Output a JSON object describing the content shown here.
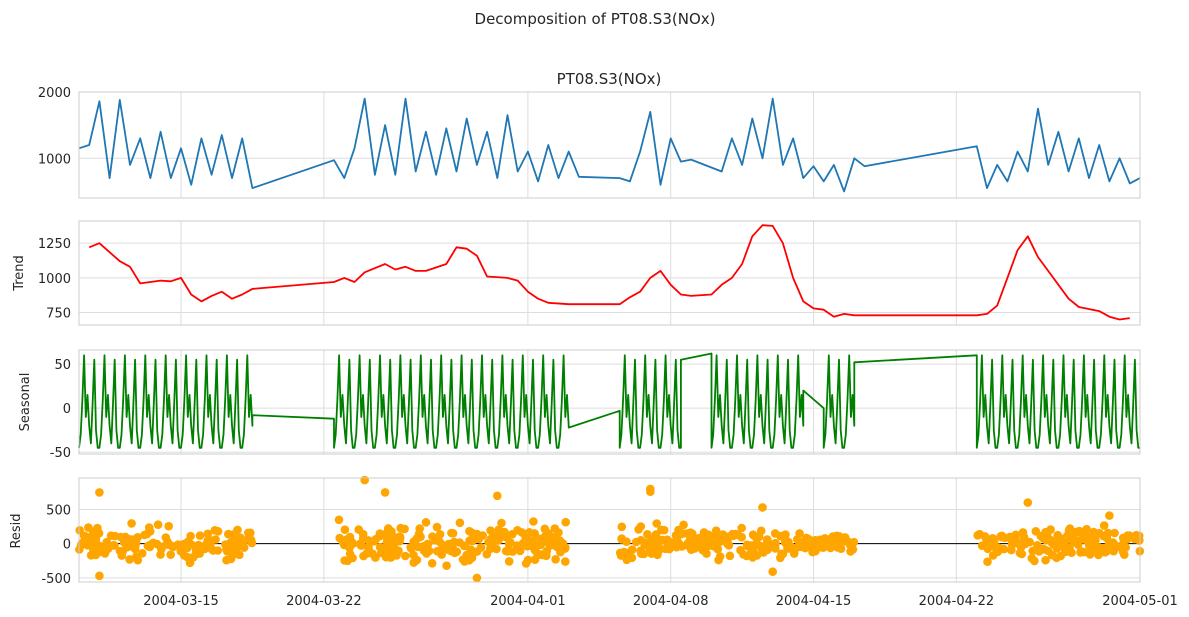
{
  "suptitle": "Decomposition of PT08.S3(NOx)",
  "x_ticks": [
    {
      "date": "2004-03-15",
      "label": "2004-03-15"
    },
    {
      "date": "2004-03-22",
      "label": "2004-03-22"
    },
    {
      "date": "2004-04-01",
      "label": "2004-04-01"
    },
    {
      "date": "2004-04-08",
      "label": "2004-04-08"
    },
    {
      "date": "2004-04-15",
      "label": "2004-04-15"
    },
    {
      "date": "2004-04-22",
      "label": "2004-04-22"
    },
    {
      "date": "2004-05-01",
      "label": "2004-05-01"
    }
  ],
  "chart_data": [
    {
      "id": "observed",
      "type": "line",
      "title": "PT08.S3(NOx)",
      "ylabel": "",
      "color": "#1f77b4",
      "xlim": [
        "2004-03-10",
        "2004-05-01"
      ],
      "ylim": [
        400,
        2000
      ],
      "yticks": [
        1000,
        2000
      ],
      "grid": true,
      "points": [
        [
          "2004-03-10",
          1150
        ],
        [
          "2004-03-10 12:00",
          1200
        ],
        [
          "2004-03-11",
          1860
        ],
        [
          "2004-03-11 12:00",
          700
        ],
        [
          "2004-03-12",
          1880
        ],
        [
          "2004-03-12 12:00",
          900
        ],
        [
          "2004-03-13",
          1300
        ],
        [
          "2004-03-13 12:00",
          700
        ],
        [
          "2004-03-14",
          1400
        ],
        [
          "2004-03-14 12:00",
          700
        ],
        [
          "2004-03-15",
          1150
        ],
        [
          "2004-03-15 12:00",
          600
        ],
        [
          "2004-03-16",
          1300
        ],
        [
          "2004-03-16 12:00",
          750
        ],
        [
          "2004-03-17",
          1350
        ],
        [
          "2004-03-17 12:00",
          700
        ],
        [
          "2004-03-18",
          1300
        ],
        [
          "2004-03-18 12:00",
          550
        ],
        [
          "2004-03-22 12:00",
          970
        ],
        [
          "2004-03-23",
          700
        ],
        [
          "2004-03-23 12:00",
          1150
        ],
        [
          "2004-03-24",
          1900
        ],
        [
          "2004-03-24 12:00",
          750
        ],
        [
          "2004-03-25",
          1500
        ],
        [
          "2004-03-25 12:00",
          750
        ],
        [
          "2004-03-26",
          1900
        ],
        [
          "2004-03-26 12:00",
          800
        ],
        [
          "2004-03-27",
          1400
        ],
        [
          "2004-03-27 12:00",
          750
        ],
        [
          "2004-03-28",
          1450
        ],
        [
          "2004-03-28 12:00",
          800
        ],
        [
          "2004-03-29",
          1600
        ],
        [
          "2004-03-29 12:00",
          900
        ],
        [
          "2004-03-30",
          1400
        ],
        [
          "2004-03-30 12:00",
          700
        ],
        [
          "2004-03-31",
          1650
        ],
        [
          "2004-03-31 12:00",
          800
        ],
        [
          "2004-04-01",
          1100
        ],
        [
          "2004-04-01 12:00",
          650
        ],
        [
          "2004-04-02",
          1200
        ],
        [
          "2004-04-02 12:00",
          700
        ],
        [
          "2004-04-03",
          1100
        ],
        [
          "2004-04-03 12:00",
          720
        ],
        [
          "2004-04-05 12:00",
          700
        ],
        [
          "2004-04-06",
          650
        ],
        [
          "2004-04-06 12:00",
          1100
        ],
        [
          "2004-04-07",
          1700
        ],
        [
          "2004-04-07 12:00",
          600
        ],
        [
          "2004-04-08",
          1300
        ],
        [
          "2004-04-08 12:00",
          950
        ],
        [
          "2004-04-09",
          980
        ],
        [
          "2004-04-10 12:00",
          800
        ],
        [
          "2004-04-11",
          1300
        ],
        [
          "2004-04-11 12:00",
          900
        ],
        [
          "2004-04-12",
          1600
        ],
        [
          "2004-04-12 12:00",
          1000
        ],
        [
          "2004-04-13",
          1900
        ],
        [
          "2004-04-13 12:00",
          900
        ],
        [
          "2004-04-14",
          1300
        ],
        [
          "2004-04-14 12:00",
          700
        ],
        [
          "2004-04-15",
          880
        ],
        [
          "2004-04-15 12:00",
          650
        ],
        [
          "2004-04-16",
          900
        ],
        [
          "2004-04-16 12:00",
          500
        ],
        [
          "2004-04-17",
          1000
        ],
        [
          "2004-04-17 12:00",
          880
        ],
        [
          "2004-04-23",
          1180
        ],
        [
          "2004-04-23 12:00",
          550
        ],
        [
          "2004-04-24",
          900
        ],
        [
          "2004-04-24 12:00",
          650
        ],
        [
          "2004-04-25",
          1100
        ],
        [
          "2004-04-25 12:00",
          800
        ],
        [
          "2004-04-26",
          1750
        ],
        [
          "2004-04-26 12:00",
          900
        ],
        [
          "2004-04-27",
          1400
        ],
        [
          "2004-04-27 12:00",
          800
        ],
        [
          "2004-04-28",
          1300
        ],
        [
          "2004-04-28 12:00",
          700
        ],
        [
          "2004-04-29",
          1200
        ],
        [
          "2004-04-29 12:00",
          650
        ],
        [
          "2004-04-30",
          1000
        ],
        [
          "2004-04-30 12:00",
          620
        ],
        [
          "2004-05-01",
          700
        ]
      ]
    },
    {
      "id": "trend",
      "type": "line",
      "title": "",
      "ylabel": "Trend",
      "color": "red",
      "xlim": [
        "2004-03-10",
        "2004-05-01"
      ],
      "ylim": [
        660,
        1410
      ],
      "yticks": [
        750,
        1000,
        1250
      ],
      "grid": true,
      "points": [
        [
          "2004-03-10 12:00",
          1220
        ],
        [
          "2004-03-11",
          1250
        ],
        [
          "2004-03-12",
          1120
        ],
        [
          "2004-03-12 12:00",
          1080
        ],
        [
          "2004-03-13",
          960
        ],
        [
          "2004-03-14",
          980
        ],
        [
          "2004-03-14 12:00",
          975
        ],
        [
          "2004-03-15",
          1000
        ],
        [
          "2004-03-15 12:00",
          880
        ],
        [
          "2004-03-16",
          830
        ],
        [
          "2004-03-16 12:00",
          870
        ],
        [
          "2004-03-17",
          900
        ],
        [
          "2004-03-17 12:00",
          850
        ],
        [
          "2004-03-18",
          880
        ],
        [
          "2004-03-18 12:00",
          920
        ],
        [
          "2004-03-22 12:00",
          970
        ],
        [
          "2004-03-23",
          1000
        ],
        [
          "2004-03-23 12:00",
          970
        ],
        [
          "2004-03-24",
          1040
        ],
        [
          "2004-03-25",
          1100
        ],
        [
          "2004-03-25 12:00",
          1060
        ],
        [
          "2004-03-26",
          1080
        ],
        [
          "2004-03-26 12:00",
          1050
        ],
        [
          "2004-03-27",
          1050
        ],
        [
          "2004-03-28",
          1100
        ],
        [
          "2004-03-28 12:00",
          1220
        ],
        [
          "2004-03-29",
          1210
        ],
        [
          "2004-03-29 12:00",
          1160
        ],
        [
          "2004-03-30",
          1010
        ],
        [
          "2004-03-31",
          1000
        ],
        [
          "2004-03-31 12:00",
          980
        ],
        [
          "2004-04-01",
          900
        ],
        [
          "2004-04-01 12:00",
          850
        ],
        [
          "2004-04-02",
          820
        ],
        [
          "2004-04-03",
          810
        ],
        [
          "2004-04-05 12:00",
          810
        ],
        [
          "2004-04-06",
          860
        ],
        [
          "2004-04-06 12:00",
          900
        ],
        [
          "2004-04-07",
          1000
        ],
        [
          "2004-04-07 12:00",
          1050
        ],
        [
          "2004-04-08",
          950
        ],
        [
          "2004-04-08 12:00",
          880
        ],
        [
          "2004-04-09",
          870
        ],
        [
          "2004-04-10",
          880
        ],
        [
          "2004-04-10 12:00",
          950
        ],
        [
          "2004-04-11",
          1000
        ],
        [
          "2004-04-11 12:00",
          1100
        ],
        [
          "2004-04-12",
          1300
        ],
        [
          "2004-04-12 12:00",
          1380
        ],
        [
          "2004-04-13",
          1375
        ],
        [
          "2004-04-13 12:00",
          1250
        ],
        [
          "2004-04-14",
          1000
        ],
        [
          "2004-04-14 12:00",
          830
        ],
        [
          "2004-04-15",
          780
        ],
        [
          "2004-04-15 12:00",
          770
        ],
        [
          "2004-04-16",
          720
        ],
        [
          "2004-04-16 12:00",
          740
        ],
        [
          "2004-04-17",
          730
        ],
        [
          "2004-04-23",
          730
        ],
        [
          "2004-04-23 12:00",
          740
        ],
        [
          "2004-04-24",
          800
        ],
        [
          "2004-04-24 12:00",
          1000
        ],
        [
          "2004-04-25",
          1200
        ],
        [
          "2004-04-25 12:00",
          1300
        ],
        [
          "2004-04-26",
          1150
        ],
        [
          "2004-04-26 12:00",
          1050
        ],
        [
          "2004-04-27",
          950
        ],
        [
          "2004-04-27 12:00",
          850
        ],
        [
          "2004-04-28",
          790
        ],
        [
          "2004-04-29",
          760
        ],
        [
          "2004-04-29 12:00",
          720
        ],
        [
          "2004-04-30",
          700
        ],
        [
          "2004-04-30 12:00",
          710
        ]
      ]
    },
    {
      "id": "seasonal",
      "type": "line",
      "title": "",
      "ylabel": "Seasonal",
      "color": "green",
      "xlim": [
        "2004-03-10",
        "2004-05-01"
      ],
      "ylim": [
        -52,
        66
      ],
      "yticks": [
        -50,
        0,
        50
      ],
      "grid": true,
      "period_pattern": [
        -45,
        -30,
        10,
        60,
        -10,
        15,
        -20,
        -40,
        5,
        55,
        -25,
        -45
      ],
      "segments": [
        {
          "start": "2004-03-10",
          "end": "2004-03-18 12:00",
          "mode": "cycles"
        },
        {
          "start": "2004-03-18 12:00",
          "end": "2004-03-22 12:00",
          "mode": "line",
          "values": [
            -8,
            -12
          ]
        },
        {
          "start": "2004-03-22 12:00",
          "end": "2004-04-03",
          "mode": "cycles"
        },
        {
          "start": "2004-04-03",
          "end": "2004-04-05 12:00",
          "mode": "line",
          "values": [
            -22,
            -3
          ]
        },
        {
          "start": "2004-04-05 12:00",
          "end": "2004-04-08 12:00",
          "mode": "cycles"
        },
        {
          "start": "2004-04-08 12:00",
          "end": "2004-04-10",
          "mode": "line",
          "values": [
            55,
            62
          ]
        },
        {
          "start": "2004-04-10",
          "end": "2004-04-14 12:00",
          "mode": "cycles"
        },
        {
          "start": "2004-04-14 12:00",
          "end": "2004-04-15 12:00",
          "mode": "line",
          "values": [
            20,
            0
          ]
        },
        {
          "start": "2004-04-15 12:00",
          "end": "2004-04-17",
          "mode": "cycles"
        },
        {
          "start": "2004-04-17",
          "end": "2004-04-23",
          "mode": "line",
          "values": [
            52,
            60
          ]
        },
        {
          "start": "2004-04-23",
          "end": "2004-05-01",
          "mode": "cycles"
        }
      ]
    },
    {
      "id": "resid",
      "type": "scatter",
      "title": "",
      "ylabel": "Resid",
      "color": "orange",
      "xlim": [
        "2004-03-10",
        "2004-05-01"
      ],
      "ylim": [
        -560,
        960
      ],
      "yticks": [
        -500,
        0,
        500
      ],
      "zero_line": true,
      "grid": true,
      "clusters": [
        {
          "start": "2004-03-10",
          "end": "2004-03-18 12:00",
          "spread": 260
        },
        {
          "start": "2004-03-22 12:00",
          "end": "2004-04-03",
          "spread": 300
        },
        {
          "start": "2004-04-05 12:00",
          "end": "2004-04-08 12:00",
          "spread": 280
        },
        {
          "start": "2004-04-08 12:00",
          "end": "2004-04-14 12:00",
          "spread": 220
        },
        {
          "start": "2004-04-14 12:00",
          "end": "2004-04-17",
          "spread": 150
        },
        {
          "start": "2004-04-23",
          "end": "2004-05-01",
          "spread": 240
        }
      ],
      "extremes": [
        [
          "2004-03-11",
          750
        ],
        [
          "2004-03-11",
          -470
        ],
        [
          "2004-03-24",
          930
        ],
        [
          "2004-03-25",
          750
        ],
        [
          "2004-03-29 12:00",
          -500
        ],
        [
          "2004-03-30 12:00",
          700
        ],
        [
          "2004-04-07",
          800
        ],
        [
          "2004-04-07",
          760
        ],
        [
          "2004-04-12 12:00",
          530
        ],
        [
          "2004-04-13",
          -410
        ],
        [
          "2004-04-25 12:00",
          600
        ],
        [
          "2004-04-29 12:00",
          410
        ]
      ]
    }
  ]
}
